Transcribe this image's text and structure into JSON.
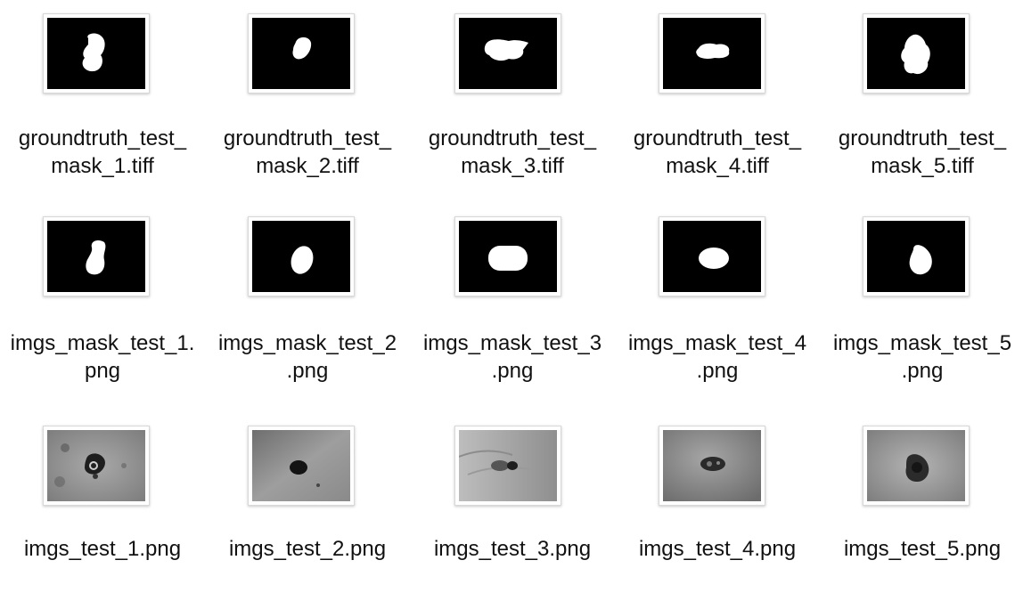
{
  "files": [
    {
      "name_lines": [
        "groundtruth_test_",
        "mask_1.tiff"
      ],
      "kind": "truth-mask",
      "icon": "truth-mask-1"
    },
    {
      "name_lines": [
        "groundtruth_test_",
        "mask_2.tiff"
      ],
      "kind": "truth-mask",
      "icon": "truth-mask-2"
    },
    {
      "name_lines": [
        "groundtruth_test_",
        "mask_3.tiff"
      ],
      "kind": "truth-mask",
      "icon": "truth-mask-3"
    },
    {
      "name_lines": [
        "groundtruth_test_",
        "mask_4.tiff"
      ],
      "kind": "truth-mask",
      "icon": "truth-mask-4"
    },
    {
      "name_lines": [
        "groundtruth_test_",
        "mask_5.tiff"
      ],
      "kind": "truth-mask",
      "icon": "truth-mask-5"
    },
    {
      "name_lines": [
        "imgs_mask_test_1.",
        "png"
      ],
      "kind": "pred-mask",
      "icon": "pred-mask-1"
    },
    {
      "name_lines": [
        "imgs_mask_test_2",
        ".png"
      ],
      "kind": "pred-mask",
      "icon": "pred-mask-2"
    },
    {
      "name_lines": [
        "imgs_mask_test_3",
        ".png"
      ],
      "kind": "pred-mask",
      "icon": "pred-mask-3"
    },
    {
      "name_lines": [
        "imgs_mask_test_4",
        ".png"
      ],
      "kind": "pred-mask",
      "icon": "pred-mask-4"
    },
    {
      "name_lines": [
        "imgs_mask_test_5",
        ".png"
      ],
      "kind": "pred-mask",
      "icon": "pred-mask-5"
    },
    {
      "name_lines": [
        "imgs_test_1.png"
      ],
      "kind": "skin-photo",
      "icon": "skin-photo-1"
    },
    {
      "name_lines": [
        "imgs_test_2.png"
      ],
      "kind": "skin-photo",
      "icon": "skin-photo-2"
    },
    {
      "name_lines": [
        "imgs_test_3.png"
      ],
      "kind": "skin-photo",
      "icon": "skin-photo-3"
    },
    {
      "name_lines": [
        "imgs_test_4.png"
      ],
      "kind": "skin-photo",
      "icon": "skin-photo-4"
    },
    {
      "name_lines": [
        "imgs_test_5.png"
      ],
      "kind": "skin-photo",
      "icon": "skin-photo-5"
    }
  ]
}
